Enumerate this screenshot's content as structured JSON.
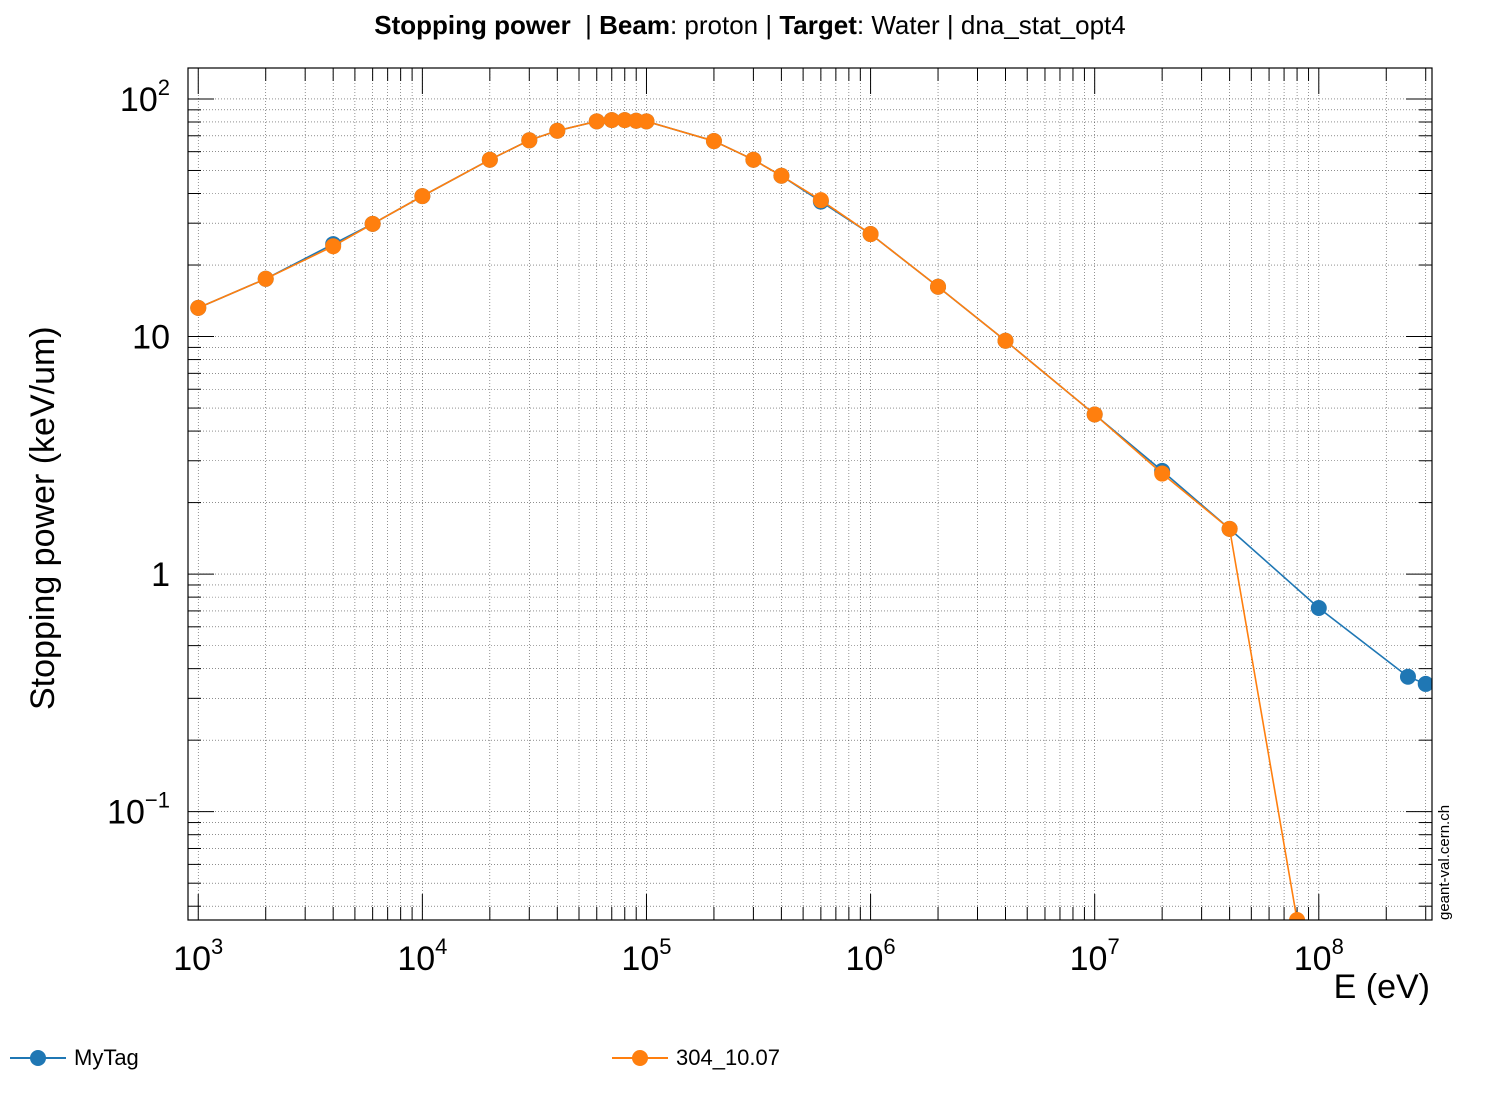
{
  "title": {
    "part1_bold": "Stopping power",
    "part2": "  | ",
    "part3_bold": "Beam",
    "part4": ": proton | ",
    "part5_bold": "Target",
    "part6": ": Water | dna_stat_opt4"
  },
  "watermark": "geant-val.cern.ch",
  "chart_data": {
    "type": "line",
    "xlabel": "E (eV)",
    "ylabel": "Stopping power (keV/um)",
    "x_scale": "log",
    "y_scale": "log",
    "xlim": [
      900,
      320000000
    ],
    "ylim": [
      0.035,
      135
    ],
    "grid": true,
    "legend_position": "bottom",
    "x_ticks": [
      {
        "value": 1000,
        "base": "10",
        "exp": "3"
      },
      {
        "value": 10000,
        "base": "10",
        "exp": "4"
      },
      {
        "value": 100000,
        "base": "10",
        "exp": "5"
      },
      {
        "value": 1000000,
        "base": "10",
        "exp": "6"
      },
      {
        "value": 10000000,
        "base": "10",
        "exp": "7"
      },
      {
        "value": 100000000,
        "base": "10",
        "exp": "8"
      }
    ],
    "y_ticks": [
      {
        "value": 0.1,
        "base": "10",
        "exp": "−1"
      },
      {
        "value": 1,
        "base": "1",
        "exp": ""
      },
      {
        "value": 10,
        "base": "10",
        "exp": ""
      },
      {
        "value": 100,
        "base": "10",
        "exp": "2"
      }
    ],
    "series": [
      {
        "name": "MyTag",
        "color": "#1f77b4",
        "x": [
          1000,
          2000,
          4000,
          6000,
          10000,
          20000,
          30000,
          40000,
          60000,
          70000,
          80000,
          90000,
          100000,
          200000,
          300000,
          400000,
          600000,
          1000000,
          2000000,
          4000000,
          10000000,
          20000000,
          40000000,
          100000000,
          250000000,
          300000000
        ],
        "y": [
          13.2,
          17.5,
          24.5,
          29.8,
          39.0,
          55.5,
          67.0,
          73.5,
          80.5,
          81.5,
          81.5,
          81.0,
          80.5,
          66.5,
          55.5,
          47.5,
          37.0,
          27.0,
          16.2,
          9.6,
          4.7,
          2.72,
          1.55,
          0.72,
          0.37,
          0.345
        ]
      },
      {
        "name": "304_10.07",
        "color": "#ff7f0e",
        "x": [
          1000,
          2000,
          4000,
          6000,
          10000,
          20000,
          30000,
          40000,
          60000,
          70000,
          80000,
          90000,
          100000,
          200000,
          300000,
          400000,
          600000,
          1000000,
          2000000,
          4000000,
          10000000,
          20000000,
          40000000,
          80000000
        ],
        "y": [
          13.2,
          17.5,
          24.0,
          29.8,
          39.0,
          55.5,
          67.0,
          73.5,
          80.5,
          81.5,
          81.5,
          81.0,
          80.5,
          66.5,
          55.5,
          47.5,
          37.5,
          27.0,
          16.2,
          9.6,
          4.7,
          2.65,
          1.55,
          0.035
        ]
      }
    ]
  }
}
